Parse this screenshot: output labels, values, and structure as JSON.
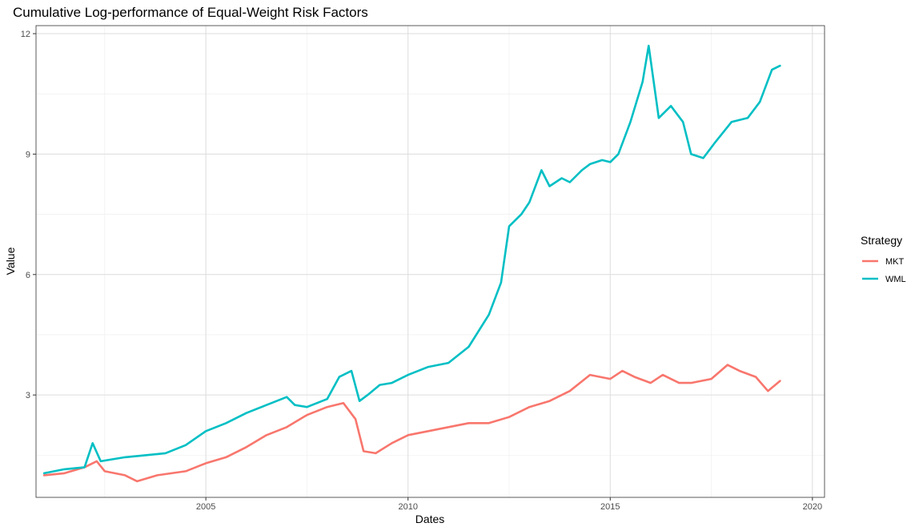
{
  "chart_data": {
    "type": "line",
    "title": "Cumulative Log-performance of Equal-Weight Risk Factors",
    "xlabel": "Dates",
    "ylabel": "Value",
    "xlim": [
      2000.8,
      2020.3
    ],
    "ylim": [
      0.45,
      12.2
    ],
    "x_ticks": [
      2005,
      2010,
      2015,
      2020
    ],
    "y_ticks": [
      3,
      6,
      9,
      12
    ],
    "grid": true,
    "legend": {
      "title": "Strategy",
      "placement": "right"
    },
    "series": [
      {
        "name": "MKT",
        "color": "#F8766D",
        "x": [
          2001.0,
          2001.5,
          2002.0,
          2002.3,
          2002.5,
          2003.0,
          2003.3,
          2003.8,
          2004.5,
          2005.0,
          2005.5,
          2006.0,
          2006.5,
          2007.0,
          2007.5,
          2008.0,
          2008.4,
          2008.7,
          2008.9,
          2009.2,
          2009.6,
          2010.0,
          2010.5,
          2011.0,
          2011.5,
          2012.0,
          2012.5,
          2013.0,
          2013.5,
          2014.0,
          2014.5,
          2015.0,
          2015.3,
          2015.6,
          2016.0,
          2016.3,
          2016.7,
          2017.0,
          2017.5,
          2017.9,
          2018.2,
          2018.6,
          2018.9,
          2019.2
        ],
        "y": [
          1.0,
          1.05,
          1.2,
          1.35,
          1.1,
          1.0,
          0.85,
          1.0,
          1.1,
          1.3,
          1.45,
          1.7,
          2.0,
          2.2,
          2.5,
          2.7,
          2.8,
          2.4,
          1.6,
          1.55,
          1.8,
          2.0,
          2.1,
          2.2,
          2.3,
          2.3,
          2.45,
          2.7,
          2.85,
          3.1,
          3.5,
          3.4,
          3.6,
          3.45,
          3.3,
          3.5,
          3.3,
          3.3,
          3.4,
          3.75,
          3.6,
          3.45,
          3.1,
          3.35
        ]
      },
      {
        "name": "WML",
        "color": "#00BFC4",
        "x": [
          2001.0,
          2001.5,
          2002.0,
          2002.2,
          2002.4,
          2003.0,
          2003.5,
          2004.0,
          2004.5,
          2005.0,
          2005.5,
          2006.0,
          2006.5,
          2007.0,
          2007.2,
          2007.5,
          2008.0,
          2008.3,
          2008.6,
          2008.8,
          2009.0,
          2009.3,
          2009.6,
          2010.0,
          2010.5,
          2011.0,
          2011.5,
          2012.0,
          2012.3,
          2012.5,
          2012.8,
          2013.0,
          2013.3,
          2013.5,
          2013.8,
          2014.0,
          2014.3,
          2014.5,
          2014.8,
          2015.0,
          2015.2,
          2015.5,
          2015.8,
          2015.95,
          2016.2,
          2016.5,
          2016.8,
          2017.0,
          2017.3,
          2017.6,
          2018.0,
          2018.4,
          2018.7,
          2019.0,
          2019.2
        ],
        "y": [
          1.05,
          1.15,
          1.2,
          1.8,
          1.35,
          1.45,
          1.5,
          1.55,
          1.75,
          2.1,
          2.3,
          2.55,
          2.75,
          2.95,
          2.75,
          2.7,
          2.9,
          3.45,
          3.6,
          2.85,
          3.0,
          3.25,
          3.3,
          3.5,
          3.7,
          3.8,
          4.2,
          5.0,
          5.8,
          7.2,
          7.5,
          7.8,
          8.6,
          8.2,
          8.4,
          8.3,
          8.6,
          8.75,
          8.85,
          8.8,
          9.0,
          9.8,
          10.8,
          11.7,
          9.9,
          10.2,
          9.8,
          9.0,
          8.9,
          9.3,
          9.8,
          9.9,
          10.3,
          11.1,
          11.2
        ]
      }
    ]
  }
}
